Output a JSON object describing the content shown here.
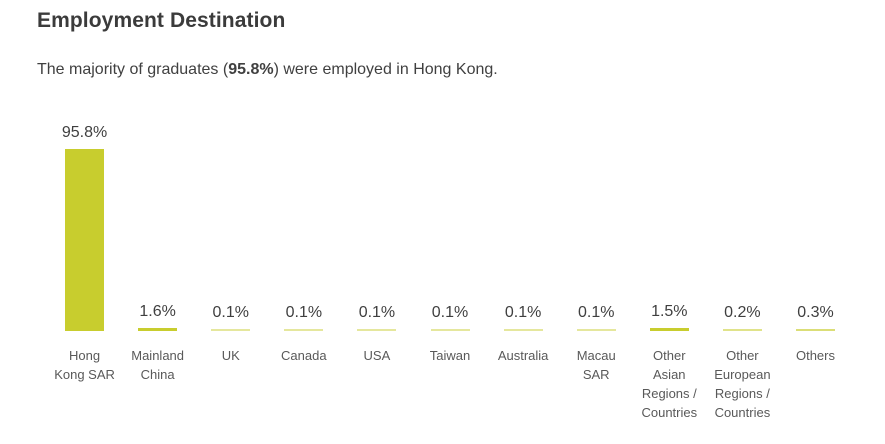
{
  "page": {
    "title": "Employment Destination",
    "subtitle_prefix": "The majority of graduates (",
    "subtitle_bold": "95.8%",
    "subtitle_suffix": ") were employed in Hong Kong."
  },
  "chart_data": {
    "type": "bar",
    "title": "Employment Destination",
    "categories": [
      "Hong Kong SAR",
      "Mainland China",
      "UK",
      "Canada",
      "USA",
      "Taiwan",
      "Australia",
      "Macau SAR",
      "Other Asian Regions / Countries",
      "Other European Regions / Countries",
      "Others"
    ],
    "values": [
      95.8,
      1.6,
      0.1,
      0.1,
      0.1,
      0.1,
      0.1,
      0.1,
      1.5,
      0.2,
      0.3
    ],
    "value_labels": [
      "95.8%",
      "1.6%",
      "0.1%",
      "0.1%",
      "0.1%",
      "0.1%",
      "0.1%",
      "0.1%",
      "1.5%",
      "0.2%",
      "0.3%"
    ],
    "display_labels": [
      "Hong\nKong SAR",
      "Mainland\nChina",
      "UK",
      "Canada",
      "USA",
      "Taiwan",
      "Australia",
      "Macau\nSAR",
      "Other\nAsian\nRegions /\nCountries",
      "Other\nEuropean\nRegions /\nCountries",
      "Others"
    ],
    "xlabel": "",
    "ylabel": "",
    "ylim": [
      0,
      100
    ],
    "grid": false,
    "legend": false,
    "data_labels": "above-bars",
    "bar_color": "#c8cd2e"
  },
  "colors": {
    "background": "#ffffff",
    "bar": "#c8cd2e",
    "title_text": "#3b3b3b",
    "body_text": "#404040",
    "value_label_text": "#3f3f3f",
    "category_label_text": "#595959"
  }
}
